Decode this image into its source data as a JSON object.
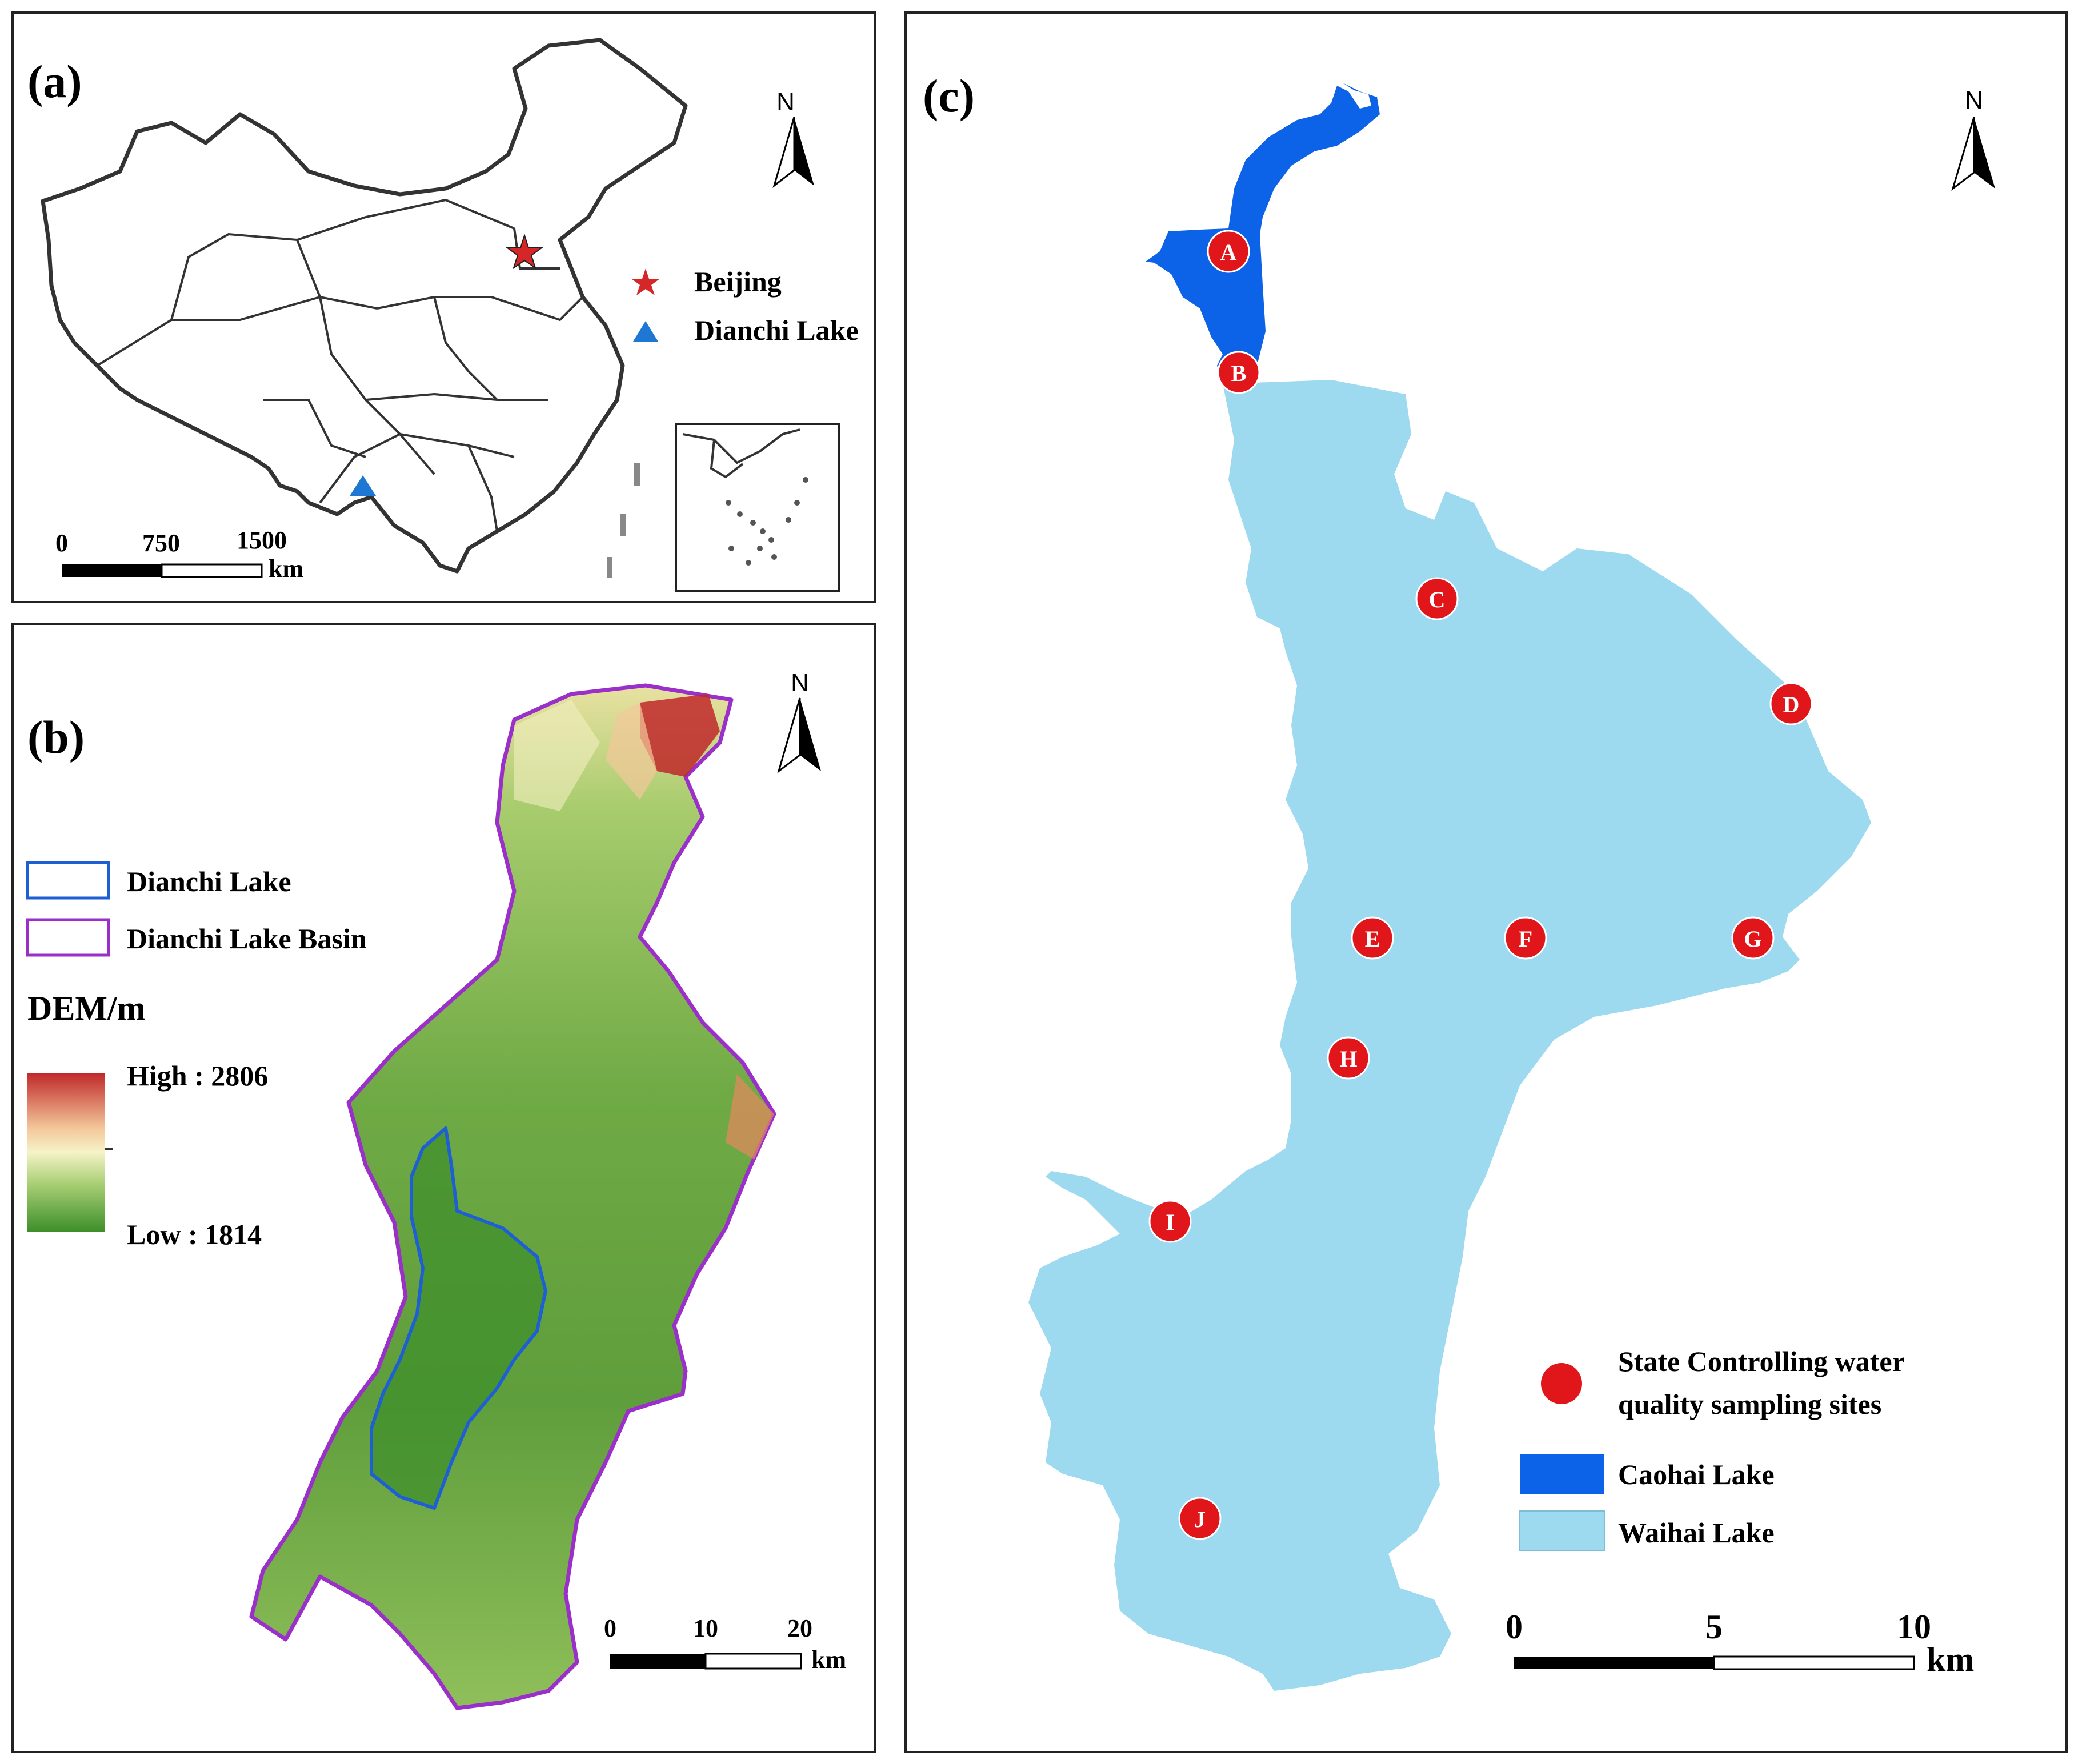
{
  "panel_a": {
    "tag": "(a)",
    "north_label": "N",
    "legend": [
      {
        "label": "Beijing",
        "symbol": "star",
        "color": "#d62728"
      },
      {
        "label": "Dianchi Lake",
        "symbol": "triangle",
        "color": "#1f77d4"
      }
    ],
    "scale": {
      "ticks": [
        "0",
        "750",
        "1500"
      ],
      "unit": "km"
    }
  },
  "panel_b": {
    "tag": "(b)",
    "north_label": "N",
    "legend": [
      {
        "label": "Dianchi Lake",
        "color": "#1f5fd4"
      },
      {
        "label": "Dianchi Lake Basin",
        "color": "#9b2fc9"
      }
    ],
    "dem_title": "DEM/m",
    "dem_high": "High : 2806",
    "dem_low": "Low : 1814",
    "colors": {
      "high": "#c0282a",
      "mid": "#f6f3c8",
      "low": "#3d8f2b"
    },
    "scale": {
      "ticks": [
        "0",
        "10",
        "20"
      ],
      "unit": "km"
    }
  },
  "panel_c": {
    "tag": "(c)",
    "north_label": "N",
    "sites": [
      "A",
      "B",
      "C",
      "D",
      "E",
      "F",
      "G",
      "H",
      "I",
      "J"
    ],
    "site_color": "#e0161b",
    "legend": {
      "sites_line1": "State Controlling water",
      "sites_line2": "quality sampling sites",
      "caohai": "Caohai Lake",
      "waihai": "Waihai Lake"
    },
    "colors": {
      "caohai": "#0c63e7",
      "waihai": "#9dd9ef"
    },
    "scale": {
      "ticks": [
        "0",
        "5",
        "10"
      ],
      "unit": "km"
    }
  }
}
